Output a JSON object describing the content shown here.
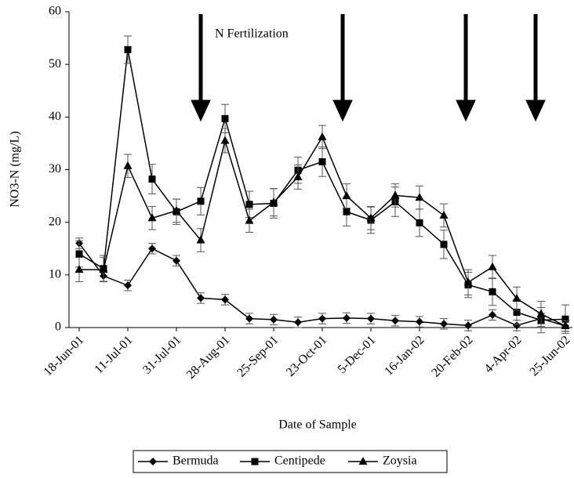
{
  "chart_data": {
    "type": "line",
    "xlabel": "Date of Sample",
    "ylabel": "NO3-N (mg/L)",
    "annotation": "N Fertilization",
    "categories": [
      "18-Jun-01",
      null,
      "11-Jul-01",
      null,
      "31-Jul-01",
      null,
      "28-Aug-01",
      null,
      "25-Sep-01",
      null,
      "23-Oct-01",
      null,
      "5-Dec-01",
      null,
      "16-Jan-02",
      null,
      "20-Feb-02",
      null,
      "4-Apr-02",
      null,
      "25-Jun-02"
    ],
    "ylim": [
      0,
      60
    ],
    "yticks": [
      0,
      10,
      20,
      30,
      40,
      50,
      60
    ],
    "grid": false,
    "legend": "bottom",
    "series": [
      {
        "name": "Bermuda",
        "color": "#000000",
        "marker": "diamond",
        "values": [
          16,
          9.8,
          8,
          15,
          12.7,
          5.6,
          5.3,
          1.7,
          1.5,
          1,
          1.7,
          1.8,
          1.7,
          1.3,
          1.1,
          0.7,
          0.4,
          2.4,
          0.4,
          1.7,
          0.3
        ],
        "errors": [
          1,
          1,
          1,
          1,
          1,
          1,
          1,
          1,
          1,
          1,
          1,
          1,
          1,
          1,
          1,
          1,
          1,
          1,
          1,
          1,
          1
        ]
      },
      {
        "name": "Centipede",
        "color": "#000000",
        "marker": "square",
        "values": [
          14,
          11.2,
          52.8,
          28.2,
          22,
          24,
          39.7,
          23.4,
          23.6,
          29.9,
          31.5,
          22,
          20.4,
          23.9,
          19.9,
          15.8,
          8.1,
          6.8,
          2.9,
          1.4,
          1.6
        ],
        "errors": [
          2.5,
          2.5,
          2.6,
          2.8,
          2.4,
          2.6,
          2.7,
          2.5,
          2.8,
          2.5,
          2.8,
          2.7,
          2.5,
          2.8,
          2.6,
          2.7,
          2.4,
          2.6,
          2.4,
          2.4,
          2.7
        ]
      },
      {
        "name": "Zoysia",
        "color": "#000000",
        "marker": "triangle",
        "values": [
          11,
          11,
          30.7,
          20.8,
          22.2,
          16.6,
          35.5,
          20.3,
          23.8,
          28.6,
          36.2,
          25,
          20.8,
          25.1,
          24.7,
          21.3,
          8.6,
          11.5,
          5.5,
          2.6,
          0.3
        ],
        "errors": [
          2.3,
          2.3,
          2.2,
          2.2,
          2.2,
          2.2,
          2.3,
          2.2,
          2.6,
          2.3,
          2.2,
          2.3,
          2.2,
          2.2,
          2.2,
          2.2,
          2.4,
          2.2,
          2.2,
          2.4,
          1
        ]
      }
    ]
  }
}
